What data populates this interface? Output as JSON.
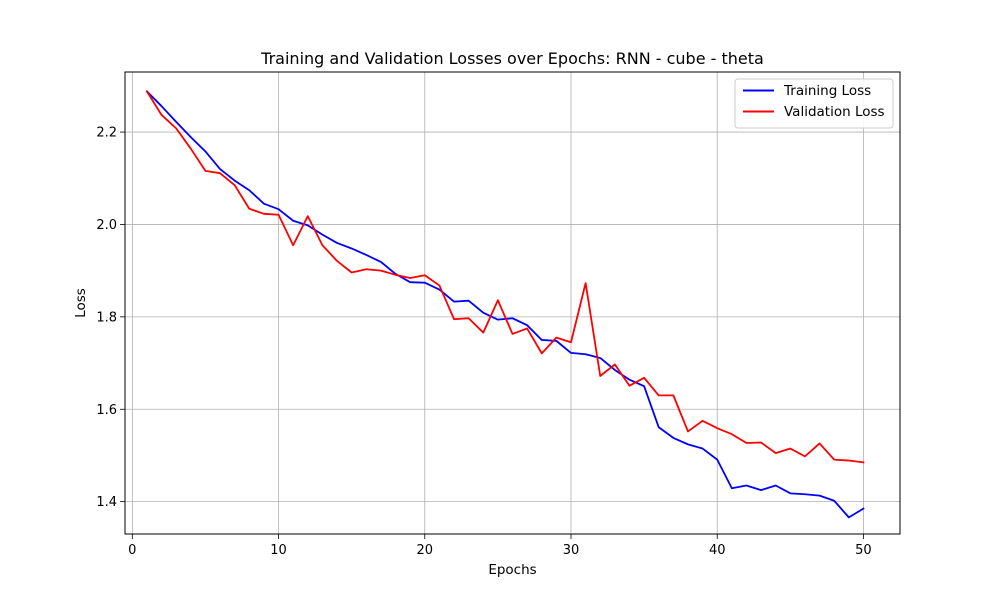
{
  "chart_data": {
    "type": "line",
    "title": "Training and Validation Losses over Epochs: RNN - cube - theta",
    "xlabel": "Epochs",
    "ylabel": "Loss",
    "xlim": [
      -0.5,
      52.5
    ],
    "ylim": [
      1.33,
      2.33
    ],
    "xticks": [
      0,
      10,
      20,
      30,
      40,
      50
    ],
    "xtick_labels": [
      "0",
      "10",
      "20",
      "30",
      "40",
      "50"
    ],
    "yticks": [
      1.4,
      1.6,
      1.8,
      2.0,
      2.2
    ],
    "ytick_labels": [
      "1.4",
      "1.6",
      "1.8",
      "2.0",
      "2.2"
    ],
    "grid": true,
    "legend": "top-right",
    "x": [
      1,
      2,
      3,
      4,
      5,
      6,
      7,
      8,
      9,
      10,
      11,
      12,
      13,
      14,
      15,
      16,
      17,
      18,
      19,
      20,
      21,
      22,
      23,
      24,
      25,
      26,
      27,
      28,
      29,
      30,
      31,
      32,
      33,
      34,
      35,
      36,
      37,
      38,
      39,
      40,
      41,
      42,
      43,
      44,
      45,
      46,
      47,
      48,
      49,
      50
    ],
    "series": [
      {
        "name": "Training Loss",
        "color": "#0000ff",
        "values": [
          2.288,
          2.256,
          2.222,
          2.189,
          2.158,
          2.12,
          2.095,
          2.074,
          2.045,
          2.033,
          2.008,
          1.998,
          1.978,
          1.96,
          1.948,
          1.934,
          1.919,
          1.893,
          1.875,
          1.874,
          1.859,
          1.833,
          1.835,
          1.809,
          1.794,
          1.797,
          1.782,
          1.75,
          1.748,
          1.722,
          1.719,
          1.711,
          1.685,
          1.664,
          1.65,
          1.561,
          1.538,
          1.524,
          1.515,
          1.491,
          1.429,
          1.435,
          1.425,
          1.435,
          1.418,
          1.416,
          1.413,
          1.402,
          1.366,
          1.385
        ]
      },
      {
        "name": "Validation Loss",
        "color": "#ff0000",
        "values": [
          2.288,
          2.237,
          2.208,
          2.164,
          2.116,
          2.111,
          2.085,
          2.034,
          2.023,
          2.021,
          1.955,
          2.018,
          1.955,
          1.921,
          1.896,
          1.903,
          1.9,
          1.891,
          1.884,
          1.89,
          1.868,
          1.795,
          1.797,
          1.766,
          1.836,
          1.763,
          1.775,
          1.721,
          1.755,
          1.745,
          1.873,
          1.672,
          1.697,
          1.651,
          1.668,
          1.63,
          1.63,
          1.552,
          1.575,
          1.559,
          1.546,
          1.527,
          1.528,
          1.505,
          1.515,
          1.498,
          1.526,
          1.491,
          1.489,
          1.485
        ]
      }
    ]
  }
}
